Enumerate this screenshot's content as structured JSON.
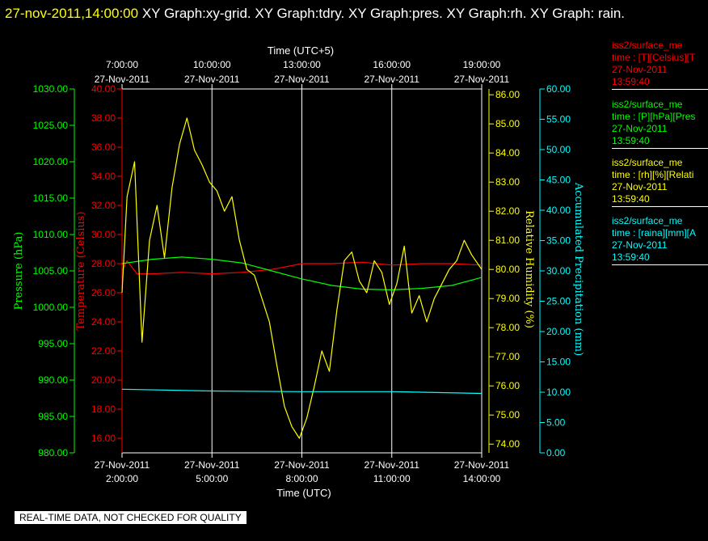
{
  "header": {
    "timestamp": "27-nov-2011,14:00:00",
    "graphs": "XY Graph:xy-grid.  XY Graph:tdry.  XY Graph:pres.  XY Graph:rh.  XY Graph: rain."
  },
  "notice": "REAL-TIME DATA, NOT CHECKED FOR QUALITY",
  "colors": {
    "temperature": "#ff0000",
    "pressure": "#00ff00",
    "humidity": "#ffff00",
    "precipitation": "#00ffff",
    "grid": "#ffffff",
    "background": "#000000"
  },
  "legend": [
    {
      "name": "iss2/surface_me",
      "line2": "time : [T][Celsius][T",
      "date": "27-Nov-2011",
      "time": "13:59:40",
      "color": "#ff0000"
    },
    {
      "name": "iss2/surface_me",
      "line2": "time : [P][hPa][Pres",
      "date": "27-Nov-2011",
      "time": "13:59:40",
      "color": "#00ff00"
    },
    {
      "name": "iss2/surface_me",
      "line2": "time : [rh][%][Relati",
      "date": "27-Nov-2011",
      "time": "13:59:40",
      "color": "#ffff00"
    },
    {
      "name": "iss2/surface_me",
      "line2": "time : [raina][mm][A",
      "date": "27-Nov-2011",
      "time": "13:59:40",
      "color": "#00ffff"
    }
  ],
  "chart_data": {
    "type": "line",
    "x_bottom": {
      "label": "Time (UTC)",
      "range": [
        "2011-11-27 02:00",
        "2011-11-27 14:00"
      ],
      "ticks": [
        {
          "date": "27-Nov-2011",
          "time": "2:00:00"
        },
        {
          "date": "27-Nov-2011",
          "time": "5:00:00"
        },
        {
          "date": "27-Nov-2011",
          "time": "8:00:00"
        },
        {
          "date": "27-Nov-2011",
          "time": "11:00:00"
        },
        {
          "date": "27-Nov-2011",
          "time": "14:00:00"
        }
      ]
    },
    "x_top": {
      "label": "Time (UTC+5)",
      "ticks": [
        {
          "time": "7:00:00",
          "date": "27-Nov-2011"
        },
        {
          "time": "10:00:00",
          "date": "27-Nov-2011"
        },
        {
          "time": "13:00:00",
          "date": "27-Nov-2011"
        },
        {
          "time": "16:00:00",
          "date": "27-Nov-2011"
        },
        {
          "time": "19:00:00",
          "date": "27-Nov-2011"
        }
      ]
    },
    "axes": {
      "pressure": {
        "label": "Pressure (hPa)",
        "range": [
          980,
          1030
        ],
        "ticks": [
          "980.00",
          "985.00",
          "990.00",
          "995.00",
          "1000.00",
          "1005.00",
          "1010.00",
          "1015.00",
          "1020.00",
          "1025.00",
          "1030.00"
        ]
      },
      "temperature": {
        "label": "Temperature (Celsius)",
        "range": [
          15,
          40
        ],
        "ticks": [
          "16.00",
          "18.00",
          "20.00",
          "22.00",
          "24.00",
          "26.00",
          "28.00",
          "30.00",
          "32.00",
          "34.00",
          "36.00",
          "38.00",
          "40.00"
        ]
      },
      "humidity": {
        "label": "Relative Humidity (%)",
        "range": [
          73.7,
          86.2
        ],
        "ticks": [
          "74.00",
          "75.00",
          "76.00",
          "77.00",
          "78.00",
          "79.00",
          "80.00",
          "81.00",
          "82.00",
          "83.00",
          "84.00",
          "85.00",
          "86.00"
        ]
      },
      "precipitation": {
        "label": "Accumulated Precipitation (mm)",
        "range": [
          0,
          60
        ],
        "ticks": [
          "0.00",
          "5.00",
          "10.00",
          "15.00",
          "20.00",
          "25.00",
          "30.00",
          "35.00",
          "40.00",
          "45.00",
          "50.00",
          "55.00",
          "60.00"
        ]
      }
    },
    "grid": true,
    "series": [
      {
        "name": "Temperature",
        "axis": "temperature",
        "x": [
          "02:00",
          "02:10",
          "02:30",
          "03:00",
          "04:00",
          "05:00",
          "06:00",
          "07:00",
          "08:00",
          "09:00",
          "10:00",
          "11:00",
          "12:00",
          "13:00",
          "14:00"
        ],
        "y": [
          27.5,
          28.2,
          27.3,
          27.3,
          27.4,
          27.3,
          27.4,
          27.6,
          28.0,
          28.0,
          28.1,
          27.9,
          28.0,
          28.0,
          27.9
        ]
      },
      {
        "name": "Pressure",
        "axis": "pressure",
        "x": [
          "02:00",
          "03:00",
          "04:00",
          "05:00",
          "06:00",
          "07:00",
          "08:00",
          "09:00",
          "10:00",
          "11:00",
          "12:00",
          "13:00",
          "14:00"
        ],
        "y": [
          1006.0,
          1006.6,
          1006.9,
          1006.6,
          1006.1,
          1005.0,
          1003.9,
          1003.0,
          1002.5,
          1002.4,
          1002.6,
          1003.0,
          1004.1
        ]
      },
      {
        "name": "Relative Humidity",
        "axis": "humidity",
        "x": [
          "02:00",
          "02:10",
          "02:25",
          "02:40",
          "02:55",
          "03:10",
          "03:25",
          "03:40",
          "03:55",
          "04:10",
          "04:25",
          "04:40",
          "04:55",
          "05:10",
          "05:25",
          "05:40",
          "05:55",
          "06:10",
          "06:25",
          "06:40",
          "06:55",
          "07:10",
          "07:25",
          "07:40",
          "07:55",
          "08:10",
          "08:25",
          "08:40",
          "08:55",
          "09:10",
          "09:25",
          "09:40",
          "09:55",
          "10:10",
          "10:25",
          "10:40",
          "10:55",
          "11:10",
          "11:25",
          "11:40",
          "11:55",
          "12:10",
          "12:25",
          "12:40",
          "12:55",
          "13:10",
          "13:25",
          "13:40",
          "14:00"
        ],
        "y": [
          79.2,
          82.5,
          83.7,
          77.5,
          81.0,
          82.2,
          80.4,
          82.8,
          84.3,
          85.2,
          84.1,
          83.6,
          83.0,
          82.7,
          82.0,
          82.5,
          81.0,
          80.0,
          79.8,
          79.0,
          78.2,
          76.7,
          75.3,
          74.6,
          74.2,
          74.9,
          76.0,
          77.2,
          76.5,
          78.6,
          80.3,
          80.6,
          79.6,
          79.2,
          80.3,
          79.9,
          78.8,
          79.5,
          80.8,
          78.5,
          79.1,
          78.2,
          79.0,
          79.5,
          80.0,
          80.3,
          81.0,
          80.5,
          80.0
        ]
      },
      {
        "name": "Accumulated Precipitation",
        "axis": "precipitation",
        "x": [
          "02:00",
          "05:00",
          "08:00",
          "11:00",
          "14:00"
        ],
        "y": [
          10.5,
          10.2,
          10.1,
          10.1,
          9.8
        ]
      }
    ]
  }
}
